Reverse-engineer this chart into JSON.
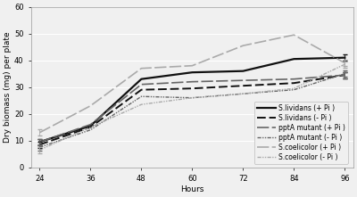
{
  "x": [
    24,
    36,
    48,
    60,
    72,
    84,
    96
  ],
  "series": [
    {
      "name": "S.lividans (+ Pi )",
      "y": [
        9.5,
        15.5,
        33.0,
        35.5,
        36.0,
        40.5,
        41.0
      ],
      "color": "#111111",
      "lw": 1.6,
      "dashes": null,
      "ls": "-"
    },
    {
      "name": "S.lividans (- Pi )",
      "y": [
        8.5,
        15.0,
        29.0,
        29.5,
        30.5,
        31.5,
        34.5
      ],
      "color": "#111111",
      "lw": 1.4,
      "dashes": [
        5,
        2
      ],
      "ls": "--"
    },
    {
      "name": "pptA mutant (+ Pi )",
      "y": [
        9.5,
        16.0,
        31.0,
        32.0,
        32.5,
        33.0,
        34.5
      ],
      "color": "#666666",
      "lw": 1.2,
      "dashes": [
        8,
        2
      ],
      "ls": "-"
    },
    {
      "name": "pptA mutant (- Pi )",
      "y": [
        7.5,
        14.0,
        26.5,
        26.0,
        27.5,
        29.0,
        35.0
      ],
      "color": "#666666",
      "lw": 1.0,
      "dashes": [
        3,
        1,
        1,
        1,
        1,
        1
      ],
      "ls": "-."
    },
    {
      "name": "S.coelicolor (+ Pi )",
      "y": [
        13.0,
        23.0,
        37.0,
        38.0,
        45.5,
        49.5,
        39.0
      ],
      "color": "#aaaaaa",
      "lw": 1.2,
      "dashes": [
        8,
        2
      ],
      "ls": "-"
    },
    {
      "name": "S.coelicolor (- Pi )",
      "y": [
        6.5,
        15.0,
        23.5,
        26.0,
        27.5,
        29.5,
        38.5
      ],
      "color": "#aaaaaa",
      "lw": 1.0,
      "dashes": [
        3,
        1,
        1,
        1,
        1,
        1
      ],
      "ls": "-."
    }
  ],
  "xlabel": "Hours",
  "ylabel": "Dry biomass (mg) per plate",
  "xlim": [
    22,
    98
  ],
  "ylim": [
    0,
    60
  ],
  "yticks": [
    0,
    10,
    20,
    30,
    40,
    50,
    60
  ],
  "xticks": [
    24,
    36,
    48,
    60,
    72,
    84,
    96
  ],
  "bg_color": "#f0f0f0",
  "grid_color": "#ffffff",
  "axis_font_size": 6.5,
  "tick_font_size": 6.0,
  "legend_font_size": 5.5
}
